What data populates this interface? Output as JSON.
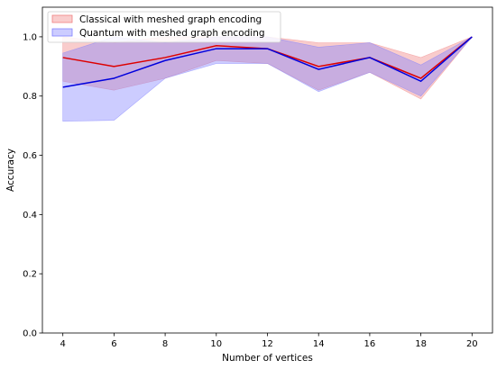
{
  "chart_data": {
    "type": "line",
    "title": "",
    "xlabel": "Number of vertices",
    "ylabel": "Accuracy",
    "xlim": [
      3.2,
      20.8
    ],
    "ylim": [
      0.0,
      1.1
    ],
    "x": [
      4,
      6,
      8,
      10,
      12,
      14,
      16,
      18,
      20
    ],
    "xticks": [
      "4",
      "6",
      "8",
      "10",
      "12",
      "14",
      "16",
      "18",
      "20"
    ],
    "yticks": [
      "0.0",
      "0.2",
      "0.4",
      "0.6",
      "0.8",
      "1.0"
    ],
    "grid": false,
    "legend_position": "top-left",
    "series": [
      {
        "name": "Classical with meshed graph encoding",
        "color": "#dd0000",
        "fill_color": "#f08080",
        "fill_opacity": 0.4,
        "values": [
          0.93,
          0.9,
          0.93,
          0.97,
          0.96,
          0.9,
          0.93,
          0.86,
          1.0
        ],
        "lower": [
          0.85,
          0.82,
          0.86,
          0.92,
          0.91,
          0.82,
          0.88,
          0.79,
          1.0
        ],
        "upper": [
          1.0,
          0.98,
          1.0,
          1.0,
          1.0,
          0.98,
          0.98,
          0.93,
          1.0
        ]
      },
      {
        "name": "Quantum with meshed graph encoding",
        "color": "#0000dd",
        "fill_color": "#8080ff",
        "fill_opacity": 0.4,
        "values": [
          0.83,
          0.86,
          0.92,
          0.96,
          0.96,
          0.89,
          0.93,
          0.85,
          1.0
        ],
        "lower": [
          0.715,
          0.718,
          0.86,
          0.91,
          0.91,
          0.815,
          0.88,
          0.8,
          1.0
        ],
        "upper": [
          0.945,
          1.0,
          0.98,
          1.0,
          1.0,
          0.965,
          0.98,
          0.905,
          1.0
        ]
      }
    ]
  }
}
